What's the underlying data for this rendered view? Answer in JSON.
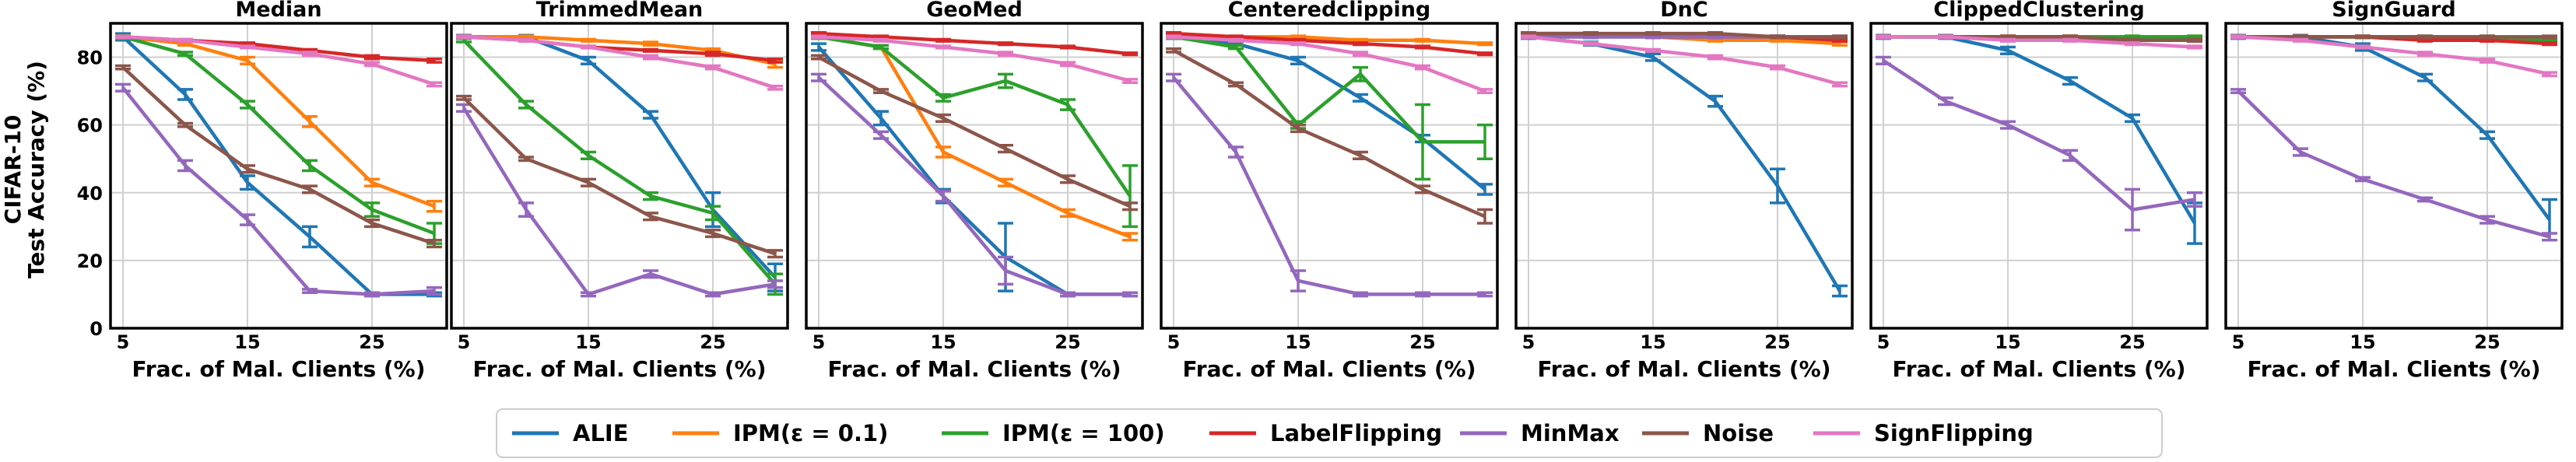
{
  "figure": {
    "ylabel_line1": "CIFAR-10",
    "ylabel_line2": "Test Accuracy (%)"
  },
  "legend": {
    "placement": "bottom-center",
    "entries": [
      {
        "name": "ALIE",
        "color": "#1f77b4"
      },
      {
        "name": "IPM(ε = 0.1)",
        "color": "#ff7f0e"
      },
      {
        "name": "IPM(ε = 100)",
        "color": "#2ca02c"
      },
      {
        "name": "LabelFlipping",
        "color": "#d62728"
      },
      {
        "name": "MinMax",
        "color": "#9467bd"
      },
      {
        "name": "Noise",
        "color": "#8c564b"
      },
      {
        "name": "SignFlipping",
        "color": "#e377c2"
      }
    ]
  },
  "chart_data": [
    {
      "type": "line",
      "title": "Median",
      "xlabel": "Frac. of Mal. Clients (%)",
      "ylabel": "CIFAR-10 Test Accuracy (%)",
      "x": [
        5,
        10,
        15,
        20,
        25,
        30
      ],
      "xticks": [
        5,
        15,
        25
      ],
      "xlim": [
        4,
        31
      ],
      "yticks": [
        0,
        20,
        40,
        60,
        80
      ],
      "ylim": [
        0,
        90
      ],
      "grid": true,
      "series": [
        {
          "name": "ALIE",
          "values": [
            86,
            69,
            43,
            27,
            10,
            10
          ],
          "err": [
            1,
            1.5,
            2,
            3,
            0.5,
            0.5
          ]
        },
        {
          "name": "IPM(ε = 0.1)",
          "values": [
            86,
            84,
            79,
            61,
            43,
            36
          ],
          "err": [
            0.5,
            0.5,
            1,
            1.5,
            1,
            1.5
          ]
        },
        {
          "name": "IPM(ε = 100)",
          "values": [
            86,
            81,
            66,
            48,
            35,
            28
          ],
          "err": [
            0.5,
            0.5,
            1,
            1.5,
            2,
            3
          ]
        },
        {
          "name": "LabelFlipping",
          "values": [
            86,
            85,
            84,
            82,
            80,
            79
          ],
          "err": [
            0.3,
            0.3,
            0.3,
            0.3,
            0.5,
            0.5
          ]
        },
        {
          "name": "MinMax",
          "values": [
            71,
            48,
            32,
            11,
            10,
            11
          ],
          "err": [
            1,
            1.5,
            1.5,
            0.5,
            0.5,
            1
          ]
        },
        {
          "name": "Noise",
          "values": [
            77,
            60,
            47,
            41,
            31,
            25
          ],
          "err": [
            0.5,
            0.5,
            1,
            1,
            1,
            1
          ]
        },
        {
          "name": "SignFlipping",
          "values": [
            86,
            85,
            83,
            81,
            78,
            72
          ],
          "err": [
            0.3,
            0.3,
            0.3,
            0.5,
            0.5,
            0.5
          ]
        }
      ]
    },
    {
      "type": "line",
      "title": "TrimmedMean",
      "xlabel": "Frac. of Mal. Clients (%)",
      "x": [
        5,
        10,
        15,
        20,
        25,
        30
      ],
      "xticks": [
        5,
        15,
        25
      ],
      "xlim": [
        4,
        31
      ],
      "yticks": [
        0,
        20,
        40,
        60,
        80
      ],
      "ylim": [
        0,
        90
      ],
      "grid": true,
      "series": [
        {
          "name": "ALIE",
          "values": [
            86,
            86,
            79,
            63,
            35,
            15
          ],
          "err": [
            0.5,
            0.5,
            1,
            1,
            5,
            4
          ]
        },
        {
          "name": "IPM(ε = 0.1)",
          "values": [
            86,
            86,
            85,
            84,
            82,
            78
          ],
          "err": [
            0.3,
            0.3,
            0.3,
            0.5,
            0.5,
            1
          ]
        },
        {
          "name": "IPM(ε = 100)",
          "values": [
            85,
            66,
            51,
            39,
            34,
            13
          ],
          "err": [
            0.5,
            1,
            1,
            1,
            2,
            3
          ]
        },
        {
          "name": "LabelFlipping",
          "values": [
            86,
            85,
            83,
            82,
            81,
            79
          ],
          "err": [
            0.3,
            0.3,
            0.3,
            0.3,
            0.5,
            0.5
          ]
        },
        {
          "name": "MinMax",
          "values": [
            65,
            35,
            10,
            16,
            10,
            13
          ],
          "err": [
            1,
            2,
            0.5,
            1,
            0.5,
            1
          ]
        },
        {
          "name": "Noise",
          "values": [
            68,
            50,
            43,
            33,
            28,
            22
          ],
          "err": [
            0.5,
            0.5,
            1,
            1,
            1,
            1
          ]
        },
        {
          "name": "SignFlipping",
          "values": [
            86,
            85,
            83,
            80,
            77,
            71
          ],
          "err": [
            0.3,
            0.3,
            0.3,
            0.5,
            0.5,
            0.5
          ]
        }
      ]
    },
    {
      "type": "line",
      "title": "GeoMed",
      "xlabel": "Frac. of Mal. Clients (%)",
      "x": [
        5,
        10,
        15,
        20,
        25,
        30
      ],
      "xticks": [
        5,
        15,
        25
      ],
      "xlim": [
        4,
        31
      ],
      "yticks": [
        0,
        20,
        40,
        60,
        80
      ],
      "ylim": [
        0,
        90
      ],
      "grid": true,
      "series": [
        {
          "name": "ALIE",
          "values": [
            83,
            62,
            39,
            21,
            10,
            10
          ],
          "err": [
            1,
            2,
            2,
            10,
            0.5,
            0.5
          ]
        },
        {
          "name": "IPM(ε = 0.1)",
          "values": [
            86,
            83,
            52,
            43,
            34,
            27
          ],
          "err": [
            0.5,
            0.5,
            1.5,
            1,
            1,
            1
          ]
        },
        {
          "name": "IPM(ε = 100)",
          "values": [
            86,
            83,
            68,
            73,
            66,
            39
          ],
          "err": [
            0.5,
            0.5,
            1,
            2,
            1.5,
            9
          ]
        },
        {
          "name": "LabelFlipping",
          "values": [
            87,
            86,
            85,
            84,
            83,
            81
          ],
          "err": [
            0.3,
            0.3,
            0.3,
            0.3,
            0.3,
            0.3
          ]
        },
        {
          "name": "MinMax",
          "values": [
            74,
            57,
            39,
            17,
            10,
            10
          ],
          "err": [
            1,
            1,
            1.5,
            4,
            0.5,
            0.5
          ]
        },
        {
          "name": "Noise",
          "values": [
            80,
            70,
            62,
            53,
            44,
            36
          ],
          "err": [
            0.5,
            0.5,
            1,
            1,
            1,
            1
          ]
        },
        {
          "name": "SignFlipping",
          "values": [
            86,
            85,
            83,
            81,
            78,
            73
          ],
          "err": [
            0.3,
            0.3,
            0.3,
            0.5,
            0.5,
            0.5
          ]
        }
      ]
    },
    {
      "type": "line",
      "title": "Centeredclipping",
      "xlabel": "Frac. of Mal. Clients (%)",
      "x": [
        5,
        10,
        15,
        20,
        25,
        30
      ],
      "xticks": [
        5,
        15,
        25
      ],
      "xlim": [
        4,
        31
      ],
      "yticks": [
        0,
        20,
        40,
        60,
        80
      ],
      "ylim": [
        0,
        90
      ],
      "grid": true,
      "series": [
        {
          "name": "ALIE",
          "values": [
            86,
            84,
            79,
            68,
            56,
            41
          ],
          "err": [
            0.5,
            0.5,
            1,
            1,
            1,
            1.5
          ]
        },
        {
          "name": "IPM(ε = 0.1)",
          "values": [
            87,
            86,
            86,
            85,
            85,
            84
          ],
          "err": [
            0.3,
            0.3,
            0.3,
            0.3,
            0.3,
            0.3
          ]
        },
        {
          "name": "IPM(ε = 100)",
          "values": [
            86,
            83,
            60,
            75,
            55,
            55
          ],
          "err": [
            0.5,
            0.5,
            1,
            2,
            11,
            5
          ]
        },
        {
          "name": "LabelFlipping",
          "values": [
            87,
            86,
            85,
            84,
            83,
            81
          ],
          "err": [
            0.3,
            0.3,
            0.3,
            0.3,
            0.3,
            0.3
          ]
        },
        {
          "name": "MinMax",
          "values": [
            74,
            52,
            14,
            10,
            10,
            10
          ],
          "err": [
            1,
            1.5,
            3,
            0.5,
            0.5,
            0.5
          ]
        },
        {
          "name": "Noise",
          "values": [
            82,
            72,
            59,
            51,
            41,
            33
          ],
          "err": [
            0.5,
            0.5,
            1,
            1,
            1,
            2
          ]
        },
        {
          "name": "SignFlipping",
          "values": [
            86,
            85,
            84,
            81,
            77,
            70
          ],
          "err": [
            0.3,
            0.3,
            0.3,
            0.5,
            0.5,
            0.5
          ]
        }
      ]
    },
    {
      "type": "line",
      "title": "DnC",
      "xlabel": "Frac. of Mal. Clients (%)",
      "x": [
        5,
        10,
        15,
        20,
        25,
        30
      ],
      "xticks": [
        5,
        15,
        25
      ],
      "xlim": [
        4,
        31
      ],
      "yticks": [
        0,
        20,
        40,
        60,
        80
      ],
      "ylim": [
        0,
        90
      ],
      "grid": true,
      "series": [
        {
          "name": "ALIE",
          "values": [
            86,
            84,
            80,
            67,
            42,
            11
          ],
          "err": [
            0.5,
            0.5,
            1,
            1.5,
            5,
            1.5
          ]
        },
        {
          "name": "IPM(ε = 0.1)",
          "values": [
            86,
            86,
            86,
            85,
            85,
            84
          ],
          "err": [
            0.3,
            0.3,
            0.3,
            0.3,
            0.3,
            0.5
          ]
        },
        {
          "name": "IPM(ε = 100)",
          "values": [
            86,
            86,
            86,
            86,
            86,
            85
          ],
          "err": [
            0.3,
            0.3,
            0.3,
            0.3,
            0.3,
            0.3
          ]
        },
        {
          "name": "LabelFlipping",
          "values": [
            87,
            87,
            86,
            86,
            86,
            85
          ],
          "err": [
            0.3,
            0.3,
            0.3,
            0.3,
            0.3,
            0.3
          ]
        },
        {
          "name": "MinMax",
          "values": [
            86,
            86,
            86,
            86,
            86,
            86
          ],
          "err": [
            0.3,
            0.3,
            0.3,
            0.3,
            0.3,
            0.3
          ]
        },
        {
          "name": "Noise",
          "values": [
            87,
            87,
            87,
            87,
            86,
            86
          ],
          "err": [
            0.3,
            0.3,
            0.3,
            0.3,
            0.3,
            0.3
          ]
        },
        {
          "name": "SignFlipping",
          "values": [
            86,
            84,
            82,
            80,
            77,
            72
          ],
          "err": [
            0.3,
            0.3,
            0.3,
            0.5,
            0.5,
            0.5
          ]
        }
      ]
    },
    {
      "type": "line",
      "title": "ClippedClustering",
      "xlabel": "Frac. of Mal. Clients (%)",
      "x": [
        5,
        10,
        15,
        20,
        25,
        30
      ],
      "xticks": [
        5,
        15,
        25
      ],
      "xlim": [
        4,
        31
      ],
      "yticks": [
        0,
        20,
        40,
        60,
        80
      ],
      "ylim": [
        0,
        90
      ],
      "grid": true,
      "series": [
        {
          "name": "ALIE",
          "values": [
            86,
            86,
            82,
            73,
            62,
            31
          ],
          "err": [
            0.5,
            0.5,
            1,
            1,
            1,
            6
          ]
        },
        {
          "name": "IPM(ε = 0.1)",
          "values": [
            86,
            86,
            86,
            86,
            86,
            86
          ],
          "err": [
            0.3,
            0.3,
            0.3,
            0.3,
            0.3,
            0.3
          ]
        },
        {
          "name": "IPM(ε = 100)",
          "values": [
            86,
            86,
            86,
            86,
            86,
            86
          ],
          "err": [
            0.3,
            0.3,
            0.3,
            0.3,
            0.3,
            0.3
          ]
        },
        {
          "name": "LabelFlipping",
          "values": [
            86,
            86,
            86,
            86,
            85,
            85
          ],
          "err": [
            0.3,
            0.3,
            0.3,
            0.3,
            0.3,
            0.3
          ]
        },
        {
          "name": "MinMax",
          "values": [
            79,
            67,
            60,
            51,
            35,
            38
          ],
          "err": [
            1,
            1,
            1,
            1.5,
            6,
            2
          ]
        },
        {
          "name": "Noise",
          "values": [
            86,
            86,
            86,
            86,
            85,
            85
          ],
          "err": [
            0.3,
            0.3,
            0.3,
            0.3,
            0.3,
            0.3
          ]
        },
        {
          "name": "SignFlipping",
          "values": [
            86,
            86,
            85,
            85,
            84,
            83
          ],
          "err": [
            0.3,
            0.3,
            0.3,
            0.3,
            0.3,
            0.3
          ]
        }
      ]
    },
    {
      "type": "line",
      "title": "SignGuard",
      "xlabel": "Frac. of Mal. Clients (%)",
      "x": [
        5,
        10,
        15,
        20,
        25,
        30
      ],
      "xticks": [
        5,
        15,
        25
      ],
      "xlim": [
        4,
        31
      ],
      "yticks": [
        0,
        20,
        40,
        60,
        80
      ],
      "ylim": [
        0,
        90
      ],
      "grid": true,
      "series": [
        {
          "name": "ALIE",
          "values": [
            86,
            86,
            83,
            74,
            57,
            32
          ],
          "err": [
            0.5,
            0.5,
            1,
            1,
            1,
            6
          ]
        },
        {
          "name": "IPM(ε = 0.1)",
          "values": [
            86,
            86,
            86,
            86,
            85,
            85
          ],
          "err": [
            0.3,
            0.3,
            0.3,
            0.3,
            0.3,
            0.3
          ]
        },
        {
          "name": "IPM(ε = 100)",
          "values": [
            86,
            86,
            86,
            86,
            86,
            85
          ],
          "err": [
            0.3,
            0.3,
            0.3,
            0.3,
            0.3,
            0.3
          ]
        },
        {
          "name": "LabelFlipping",
          "values": [
            86,
            86,
            86,
            85,
            85,
            84
          ],
          "err": [
            0.3,
            0.3,
            0.3,
            0.3,
            0.3,
            0.3
          ]
        },
        {
          "name": "MinMax",
          "values": [
            70,
            52,
            44,
            38,
            32,
            27
          ],
          "err": [
            0.5,
            1,
            0.5,
            0.5,
            1,
            1
          ]
        },
        {
          "name": "Noise",
          "values": [
            86,
            86,
            86,
            86,
            86,
            86
          ],
          "err": [
            0.3,
            0.3,
            0.3,
            0.3,
            0.3,
            0.3
          ]
        },
        {
          "name": "SignFlipping",
          "values": [
            86,
            85,
            83,
            81,
            79,
            75
          ],
          "err": [
            0.3,
            0.3,
            0.3,
            0.5,
            0.5,
            0.5
          ]
        }
      ]
    }
  ]
}
